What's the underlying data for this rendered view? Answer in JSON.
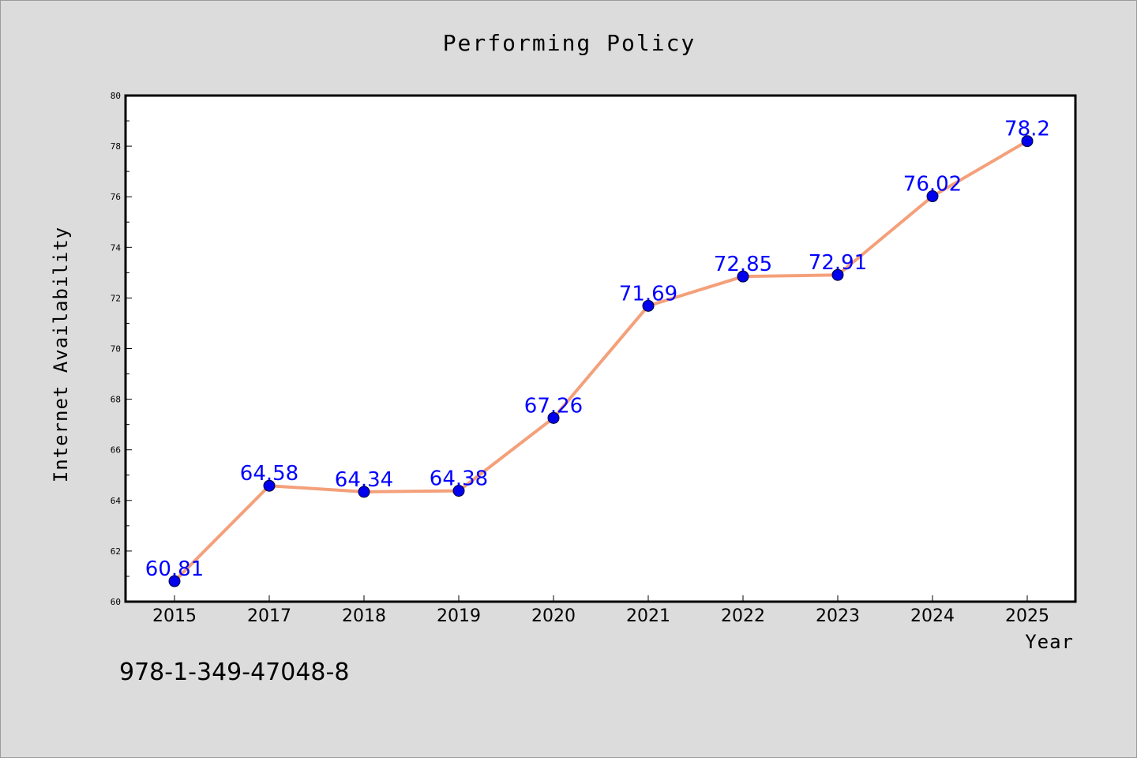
{
  "chart_data": {
    "type": "line",
    "title": "Performing Policy",
    "xlabel": "Year",
    "ylabel": "Internet Availability",
    "categories": [
      "2015",
      "2017",
      "2018",
      "2019",
      "2020",
      "2021",
      "2022",
      "2023",
      "2024",
      "2025"
    ],
    "series": [
      {
        "values": [
          60.81,
          64.58,
          64.34,
          64.38,
          67.26,
          71.69,
          72.85,
          72.91,
          76.02,
          78.2
        ],
        "labels": [
          "60.81",
          "64.58",
          "64.34",
          "64.38",
          "67.26",
          "71.69",
          "72.85",
          "72.91",
          "76.02",
          "78.2"
        ],
        "line_color": "#f4a07a",
        "marker_color": "#0000ee"
      }
    ],
    "ylim": [
      60,
      80
    ],
    "yticks": [
      "60",
      "62",
      "64",
      "66",
      "68",
      "70",
      "72",
      "74",
      "76",
      "78",
      "80"
    ],
    "grid": false,
    "legend": "none"
  },
  "footer": {
    "isbn": "978-1-349-47048-8"
  }
}
